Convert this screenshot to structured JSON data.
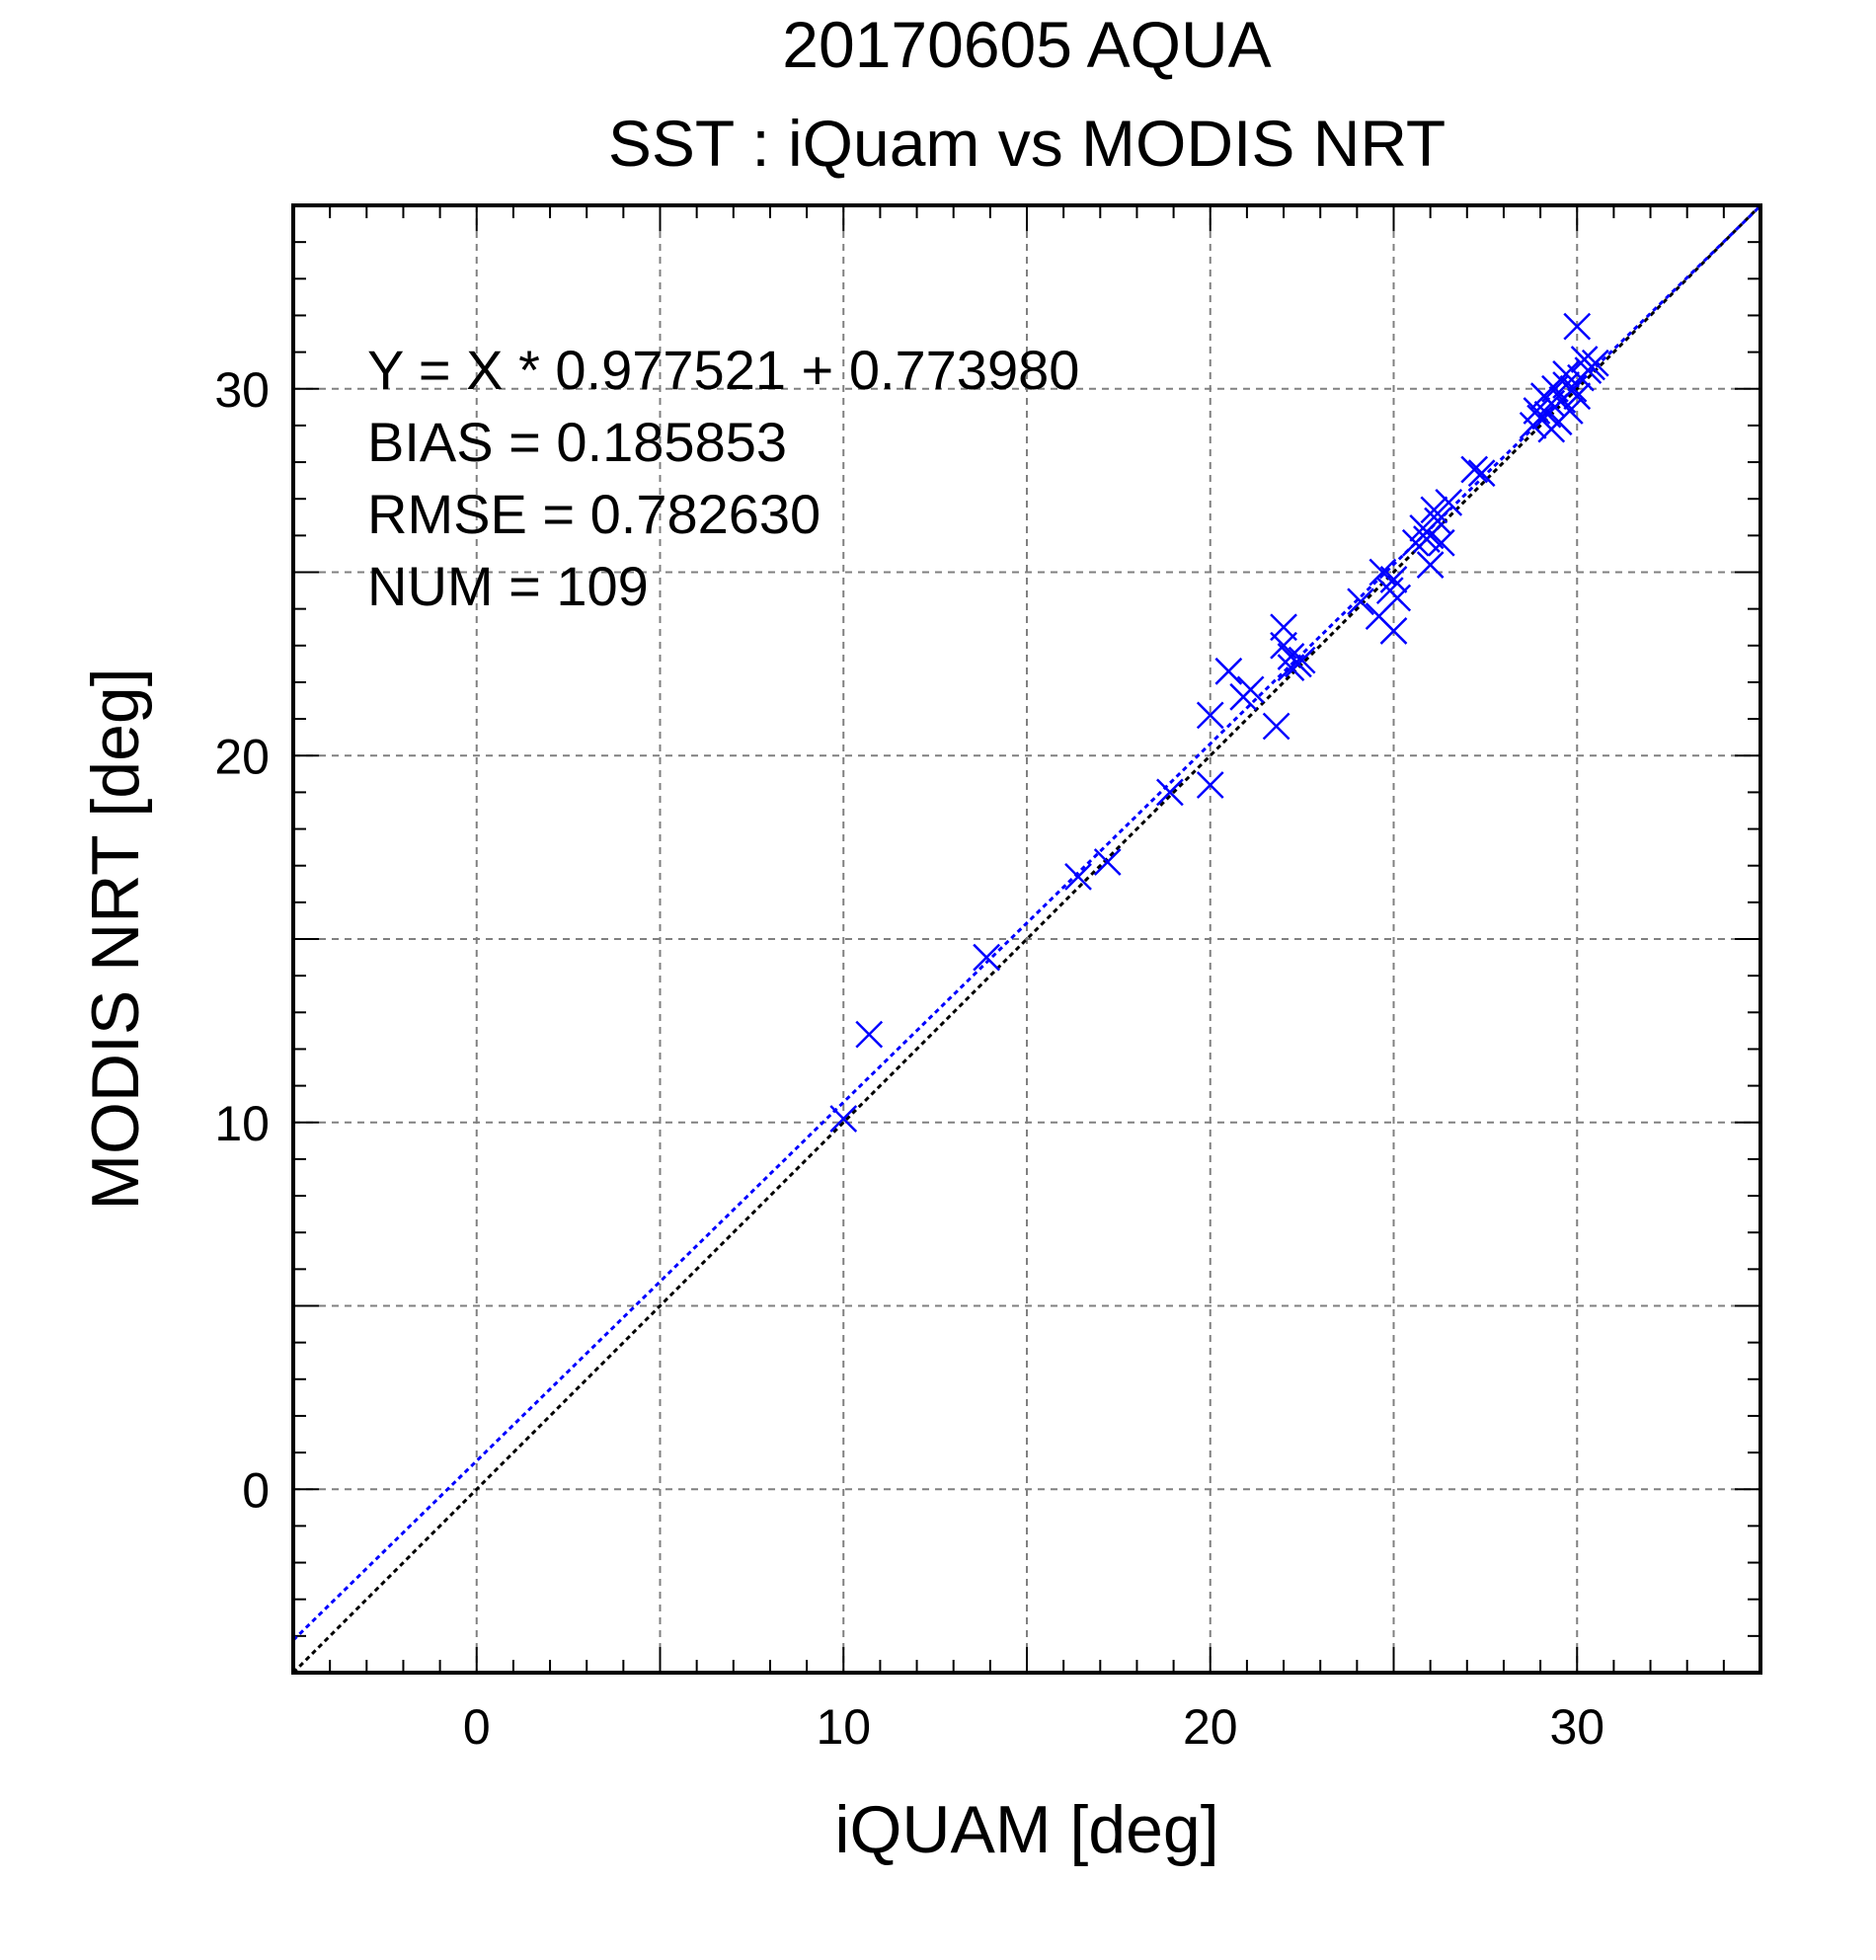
{
  "chart_data": {
    "type": "scatter",
    "title": "20170605 AQUA",
    "subtitle": "SST : iQuam vs MODIS NRT",
    "xlabel": "iQUAM [deg]",
    "ylabel": "MODIS NRT [deg]",
    "xlim": [
      -5,
      35
    ],
    "ylim": [
      -5,
      35
    ],
    "x_ticks": [
      0,
      10,
      20,
      30
    ],
    "y_ticks": [
      0,
      10,
      20,
      30
    ],
    "x_tick_labels": [
      "0",
      "10",
      "20",
      "30"
    ],
    "y_tick_labels": [
      "0",
      "10",
      "20",
      "30"
    ],
    "grid": true,
    "grid_step": 5,
    "marker": "x",
    "colors": {
      "points": "#0000ff",
      "fit_line": "#0000ff",
      "identity_line": "#000000",
      "grid": "#808080",
      "frame": "#000000"
    },
    "fit": {
      "slope": 0.977521,
      "intercept": 0.77398
    },
    "stats": {
      "equation": "Y = X * 0.977521 + 0.773980",
      "bias": "BIAS = 0.185853",
      "rmse": "RMSE = 0.782630",
      "num": "NUM = 109"
    },
    "points": [
      [
        10.0,
        10.1
      ],
      [
        10.7,
        12.4
      ],
      [
        13.9,
        14.5
      ],
      [
        16.4,
        16.7
      ],
      [
        17.2,
        17.1
      ],
      [
        18.9,
        19.0
      ],
      [
        20.0,
        19.2
      ],
      [
        20.0,
        21.1
      ],
      [
        20.5,
        22.3
      ],
      [
        20.9,
        21.6
      ],
      [
        21.1,
        21.8
      ],
      [
        21.8,
        20.8
      ],
      [
        22.0,
        23.5
      ],
      [
        22.0,
        23.0
      ],
      [
        22.2,
        22.4
      ],
      [
        22.2,
        22.7
      ],
      [
        22.4,
        22.5
      ],
      [
        22.5,
        22.6
      ],
      [
        24.1,
        24.2
      ],
      [
        24.6,
        23.8
      ],
      [
        24.7,
        25.0
      ],
      [
        24.9,
        24.5
      ],
      [
        25.0,
        23.4
      ],
      [
        25.0,
        24.8
      ],
      [
        25.1,
        24.3
      ],
      [
        25.6,
        25.8
      ],
      [
        25.8,
        26.2
      ],
      [
        25.9,
        25.9
      ],
      [
        26.0,
        25.2
      ],
      [
        26.0,
        26.0
      ],
      [
        26.1,
        26.7
      ],
      [
        26.2,
        26.4
      ],
      [
        26.3,
        25.8
      ],
      [
        26.5,
        26.9
      ],
      [
        27.2,
        27.8
      ],
      [
        27.4,
        27.7
      ],
      [
        28.8,
        29.0
      ],
      [
        28.9,
        29.4
      ],
      [
        29.0,
        29.2
      ],
      [
        29.1,
        29.8
      ],
      [
        29.2,
        29.3
      ],
      [
        29.3,
        28.9
      ],
      [
        29.3,
        29.6
      ],
      [
        29.4,
        30.0
      ],
      [
        29.5,
        29.1
      ],
      [
        29.6,
        29.7
      ],
      [
        29.7,
        30.1
      ],
      [
        29.7,
        30.4
      ],
      [
        29.8,
        29.4
      ],
      [
        29.9,
        30.0
      ],
      [
        30.0,
        31.7
      ],
      [
        30.0,
        29.8
      ],
      [
        30.1,
        30.3
      ],
      [
        30.2,
        30.8
      ],
      [
        30.3,
        30.5
      ],
      [
        30.4,
        30.6
      ],
      [
        30.5,
        30.7
      ]
    ]
  }
}
